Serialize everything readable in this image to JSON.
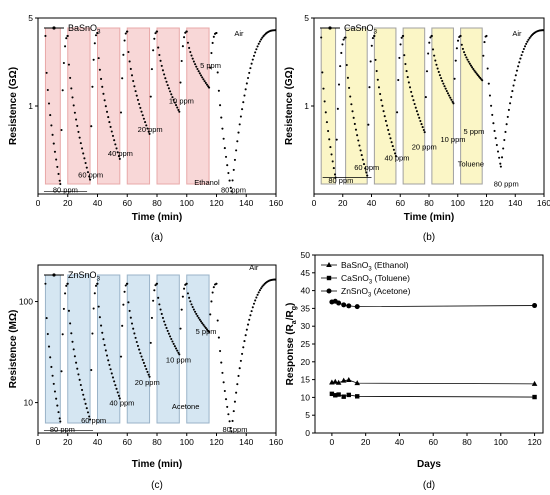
{
  "chart_data": [
    {
      "panel_label": "(a)",
      "type": "line",
      "legend": "BaSnO",
      "legend_sub": "3",
      "ylabel": "Resistence (GΩ)",
      "xlabel": "Time (min)",
      "y_scale": "log",
      "ylim": [
        0.2,
        5
      ],
      "xlim": [
        0,
        160
      ],
      "xticks": [
        0,
        20,
        40,
        60,
        80,
        100,
        120,
        140,
        160
      ],
      "yticks": [
        {
          "value": 5,
          "label": "5"
        },
        {
          "value": 1,
          "label": "1"
        }
      ],
      "shade_color": "#f8d7d7",
      "shade_edge": "#e8a8a8",
      "cycles": [
        {
          "on": 5,
          "off": 15,
          "low": 0.24,
          "high": 3.6
        },
        {
          "on": 20,
          "off": 35,
          "low": 0.26,
          "high": 3.8
        },
        {
          "on": 40,
          "off": 55,
          "low": 0.38,
          "high": 3.9
        },
        {
          "on": 60,
          "off": 75,
          "low": 0.6,
          "high": 3.9
        },
        {
          "on": 80,
          "off": 95,
          "low": 0.9,
          "high": 3.9
        },
        {
          "on": 100,
          "off": 115,
          "low": 1.4,
          "high": 3.8
        },
        {
          "on": 120,
          "off": 160,
          "low": 0.21,
          "high": 4.0
        }
      ],
      "annotations": [
        {
          "text": "Air",
          "x": 132,
          "y": 3.6
        },
        {
          "text": "5 ppm",
          "x": 109,
          "y": 2.0
        },
        {
          "text": "10 ppm",
          "x": 88,
          "y": 1.05
        },
        {
          "text": "20 ppm",
          "x": 67,
          "y": 0.62
        },
        {
          "text": "40 ppm",
          "x": 47,
          "y": 0.4
        },
        {
          "text": "60 ppm",
          "x": 27,
          "y": 0.27
        },
        {
          "text": "80 ppm",
          "x": 10,
          "y": 0.205
        },
        {
          "text": "Ethanol",
          "x": 105,
          "y": 0.235
        },
        {
          "text": "80 ppm",
          "x": 123,
          "y": 0.205
        }
      ],
      "bracket": {
        "x1": 4,
        "x2": 33,
        "y": 0.21
      },
      "caption": "(a)"
    },
    {
      "panel_label": "(b)",
      "type": "line",
      "legend": "CaSnO",
      "legend_sub": "3",
      "ylabel": "Resistence (GΩ)",
      "xlabel": "Time (min)",
      "y_scale": "log",
      "ylim": [
        0.2,
        5
      ],
      "xlim": [
        0,
        160
      ],
      "xticks": [
        0,
        20,
        40,
        60,
        80,
        100,
        120,
        140,
        160
      ],
      "yticks": [
        {
          "value": 5,
          "label": "5"
        },
        {
          "value": 1,
          "label": "1"
        }
      ],
      "shade_color": "#fbf6c6",
      "shade_edge": "#a0a0a0",
      "cycles": [
        {
          "on": 5,
          "off": 15,
          "low": 0.27,
          "high": 3.5
        },
        {
          "on": 22,
          "off": 37,
          "low": 0.28,
          "high": 3.6
        },
        {
          "on": 42,
          "off": 57,
          "low": 0.4,
          "high": 3.6
        },
        {
          "on": 62,
          "off": 77,
          "low": 0.62,
          "high": 3.6
        },
        {
          "on": 82,
          "off": 97,
          "low": 1.05,
          "high": 3.6
        },
        {
          "on": 102,
          "off": 117,
          "low": 1.6,
          "high": 3.6
        },
        {
          "on": 120,
          "off": 160,
          "low": 0.33,
          "high": 4.0
        }
      ],
      "annotations": [
        {
          "text": "Air",
          "x": 138,
          "y": 3.6
        },
        {
          "text": "5 ppm",
          "x": 104,
          "y": 0.6
        },
        {
          "text": "10 ppm",
          "x": 88,
          "y": 0.52
        },
        {
          "text": "20 ppm",
          "x": 68,
          "y": 0.45
        },
        {
          "text": "40 ppm",
          "x": 49,
          "y": 0.37
        },
        {
          "text": "60 ppm",
          "x": 28,
          "y": 0.31
        },
        {
          "text": "80 ppm",
          "x": 10,
          "y": 0.245
        },
        {
          "text": "Toluene",
          "x": 100,
          "y": 0.33
        },
        {
          "text": "80 ppm",
          "x": 125,
          "y": 0.23
        }
      ],
      "bracket": {
        "x1": 6,
        "x2": 40,
        "y": 0.27
      },
      "caption": "(b)"
    },
    {
      "panel_label": "(c)",
      "type": "line",
      "legend": "ZnSnO",
      "legend_sub": "3",
      "ylabel": "Resistence (MΩ)",
      "xlabel": "Time (min)",
      "y_scale": "log",
      "ylim": [
        5,
        230
      ],
      "xlim": [
        0,
        160
      ],
      "xticks": [
        0,
        20,
        40,
        60,
        80,
        100,
        120,
        140,
        160
      ],
      "yticks": [
        {
          "value": 100,
          "label": "100"
        },
        {
          "value": 10,
          "label": "10"
        }
      ],
      "shade_color": "#d5e6f2",
      "shade_edge": "#9ab3c8",
      "cycles": [
        {
          "on": 5,
          "off": 15,
          "low": 6.5,
          "high": 150
        },
        {
          "on": 20,
          "off": 35,
          "low": 6.8,
          "high": 150
        },
        {
          "on": 40,
          "off": 55,
          "low": 11,
          "high": 150
        },
        {
          "on": 60,
          "off": 75,
          "low": 18,
          "high": 150
        },
        {
          "on": 80,
          "off": 95,
          "low": 30,
          "high": 150
        },
        {
          "on": 100,
          "off": 115,
          "low": 50,
          "high": 150
        },
        {
          "on": 120,
          "off": 160,
          "low": 5.2,
          "high": 165
        }
      ],
      "annotations": [
        {
          "text": "Air",
          "x": 142,
          "y": 205
        },
        {
          "text": "5 ppm",
          "x": 106,
          "y": 48
        },
        {
          "text": "10 ppm",
          "x": 86,
          "y": 25
        },
        {
          "text": "20 ppm",
          "x": 65,
          "y": 15
        },
        {
          "text": "40 ppm",
          "x": 48,
          "y": 9.4
        },
        {
          "text": "60 ppm",
          "x": 29,
          "y": 6.3
        },
        {
          "text": "80 ppm",
          "x": 8,
          "y": 5.1
        },
        {
          "text": "Acetone",
          "x": 90,
          "y": 8.6
        },
        {
          "text": "80 ppm",
          "x": 124,
          "y": 5.1
        }
      ],
      "bracket": {
        "x1": 4,
        "x2": 37,
        "y": 5.3
      },
      "caption": "(c)"
    },
    {
      "panel_label": "(d)",
      "type": "scatter",
      "ylabel_main": "Response (R",
      "ylabel_sub1": "a",
      "ylabel_mid": "/R",
      "ylabel_sub2": "g",
      "ylabel_end": ")",
      "xlabel": "Days",
      "xlim": [
        -10,
        125
      ],
      "ylim": [
        0,
        50
      ],
      "xticks": [
        0,
        20,
        40,
        60,
        80,
        100,
        120
      ],
      "yticks": [
        0,
        5,
        10,
        15,
        20,
        25,
        30,
        35,
        40,
        45,
        50
      ],
      "series": [
        {
          "name": "BaSnO",
          "name_sub": "3",
          "name_tail": " (Ethanol)",
          "marker": "triangle",
          "x": [
            0,
            2,
            4,
            7,
            10,
            15,
            120
          ],
          "y": [
            14.2,
            14.4,
            14.1,
            14.7,
            14.9,
            14.0,
            13.8
          ]
        },
        {
          "name": "CaSnO",
          "name_sub": "3",
          "name_tail": " (Toluene)",
          "marker": "square",
          "x": [
            0,
            2,
            4,
            7,
            10,
            15,
            120
          ],
          "y": [
            11.0,
            10.6,
            10.8,
            10.2,
            10.7,
            10.3,
            10.1
          ]
        },
        {
          "name": "ZnSnO",
          "name_sub": "3",
          "name_tail": " (Acetone)",
          "marker": "circle",
          "x": [
            0,
            2,
            4,
            7,
            10,
            15,
            120
          ],
          "y": [
            36.8,
            37.0,
            36.5,
            36.0,
            35.7,
            35.5,
            35.8
          ]
        }
      ],
      "caption": "(d)"
    }
  ]
}
